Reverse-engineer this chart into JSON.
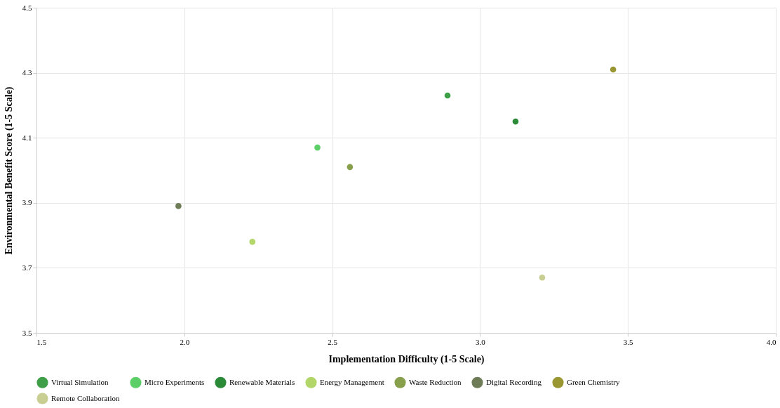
{
  "chart_data": {
    "type": "scatter",
    "xlabel": "Implementation Difficulty (1-5 Scale)",
    "ylabel": "Environmental Benefit Score (1-5 Scale)",
    "xlim": [
      1.5,
      4.0
    ],
    "xticks": [
      {
        "value": 1.5,
        "label": "1.5"
      },
      {
        "value": 2.0,
        "label": "2.0"
      },
      {
        "value": 2.5,
        "label": "2.5"
      },
      {
        "value": 3.0,
        "label": "3.0"
      },
      {
        "value": 3.5,
        "label": "3.5"
      },
      {
        "value": 4.0,
        "label": "4.0"
      }
    ],
    "ylim": [
      3.5,
      4.5
    ],
    "yticks": [
      3.5,
      3.7,
      3.9,
      4.1,
      4.3,
      4.5
    ],
    "grid": true,
    "legend": "bottom",
    "marker": "circle",
    "series": [
      {
        "name": "Virtual Simulation",
        "color": "#3f9e48",
        "x": [
          2.89
        ],
        "values": [
          4.23
        ]
      },
      {
        "name": "Micro Experiments",
        "color": "#5ccf68",
        "x": [
          2.45
        ],
        "values": [
          4.07
        ]
      },
      {
        "name": "Renewable Materials",
        "color": "#2a8a38",
        "x": [
          3.12
        ],
        "values": [
          4.15
        ]
      },
      {
        "name": "Energy Management",
        "color": "#b3d66a",
        "x": [
          2.23
        ],
        "values": [
          3.78
        ]
      },
      {
        "name": "Waste Reduction",
        "color": "#88a04c",
        "x": [
          2.56
        ],
        "values": [
          4.01
        ]
      },
      {
        "name": "Digital Recording",
        "color": "#6e7d58",
        "x": [
          1.98
        ],
        "values": [
          3.89
        ]
      },
      {
        "name": "Green Chemistry",
        "color": "#9a9632",
        "x": [
          3.45
        ],
        "values": [
          4.31
        ]
      },
      {
        "name": "Remote Collaboration",
        "color": "#c9cf92",
        "x": [
          3.21
        ],
        "values": [
          3.67
        ]
      }
    ]
  }
}
